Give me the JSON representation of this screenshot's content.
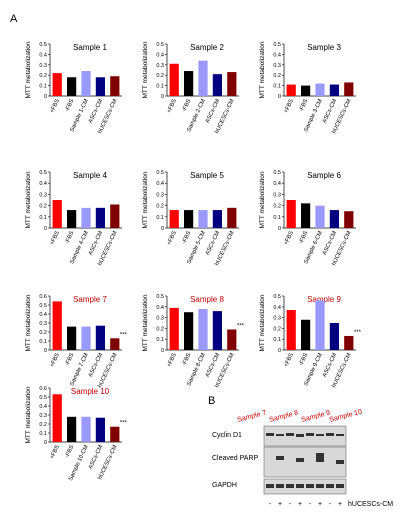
{
  "panel_labels": [
    "A",
    "B"
  ],
  "chart_data": [
    {
      "type": "bar",
      "title": "Sample 1",
      "title_color": "#000000",
      "y_label": "MTT metabolization",
      "categories": [
        "+FBS",
        "-FBS",
        "Sample 1-CM",
        "ASCs-CM",
        "hUCESCs-CM"
      ],
      "values": [
        0.22,
        0.18,
        0.24,
        0.18,
        0.19
      ],
      "colors": [
        "#ff0000",
        "#000000",
        "#9999ff",
        "#000080",
        "#800000"
      ],
      "ylim": [
        0,
        0.5
      ],
      "yticks": [
        0,
        0.1,
        0.2,
        0.3,
        0.4,
        0.5
      ]
    },
    {
      "type": "bar",
      "title": "Sample 2",
      "title_color": "#000000",
      "y_label": "MTT metabolization",
      "categories": [
        "+FBS",
        "-FBS",
        "Sample 2-CM",
        "ASCs-CM",
        "hUCESCs-CM"
      ],
      "values": [
        0.31,
        0.24,
        0.34,
        0.21,
        0.23
      ],
      "colors": [
        "#ff0000",
        "#000000",
        "#9999ff",
        "#000080",
        "#800000"
      ],
      "ylim": [
        0,
        0.5
      ],
      "yticks": [
        0,
        0.1,
        0.2,
        0.3,
        0.4,
        0.5
      ]
    },
    {
      "type": "bar",
      "title": "Sample 3",
      "title_color": "#000000",
      "y_label": "MTT metabolization",
      "categories": [
        "+FBS",
        "-FBS",
        "Sample 3-CM",
        "ASCs-CM",
        "hUCESCs-CM"
      ],
      "values": [
        0.11,
        0.1,
        0.12,
        0.11,
        0.13
      ],
      "colors": [
        "#ff0000",
        "#000000",
        "#9999ff",
        "#000080",
        "#800000"
      ],
      "ylim": [
        0,
        0.5
      ],
      "yticks": [
        0,
        0.1,
        0.2,
        0.3,
        0.4,
        0.5
      ]
    },
    {
      "type": "bar",
      "title": "Sample 4",
      "title_color": "#000000",
      "y_label": "MTT metabolization",
      "categories": [
        "+FBS",
        "-FBS",
        "Sample 4-CM",
        "ASCs-CM",
        "hUCESCs-CM"
      ],
      "values": [
        0.25,
        0.16,
        0.18,
        0.18,
        0.21
      ],
      "colors": [
        "#ff0000",
        "#000000",
        "#9999ff",
        "#000080",
        "#800000"
      ],
      "ylim": [
        0,
        0.5
      ],
      "yticks": [
        0,
        0.1,
        0.2,
        0.3,
        0.4,
        0.5
      ]
    },
    {
      "type": "bar",
      "title": "Sample 5",
      "title_color": "#000000",
      "y_label": "MTT metabolization",
      "categories": [
        "+FBS",
        "-FBS",
        "Sample 5-CM",
        "ASCs-CM",
        "hUCESCs-CM"
      ],
      "values": [
        0.16,
        0.16,
        0.16,
        0.16,
        0.18
      ],
      "colors": [
        "#ff0000",
        "#000000",
        "#9999ff",
        "#000080",
        "#800000"
      ],
      "ylim": [
        0,
        0.5
      ],
      "yticks": [
        0,
        0.1,
        0.2,
        0.3,
        0.4,
        0.5
      ]
    },
    {
      "type": "bar",
      "title": "Sample 6",
      "title_color": "#000000",
      "y_label": "MTT metabolization",
      "categories": [
        "+FBS",
        "-FBS",
        "Sample 6-CM",
        "ASCs-CM",
        "hUCESCs-CM"
      ],
      "values": [
        0.25,
        0.22,
        0.2,
        0.16,
        0.15
      ],
      "colors": [
        "#ff0000",
        "#000000",
        "#9999ff",
        "#000080",
        "#800000"
      ],
      "ylim": [
        0,
        0.5
      ],
      "yticks": [
        0,
        0.1,
        0.2,
        0.3,
        0.4,
        0.5
      ]
    },
    {
      "type": "bar",
      "title": "Sample 7",
      "title_color": "#c00000",
      "y_label": "MTT metabolization",
      "categories": [
        "+FBS",
        "-FBS",
        "Sample 7-CM",
        "ASCs-CM",
        "hUCESCs-CM"
      ],
      "values": [
        0.54,
        0.26,
        0.26,
        0.27,
        0.13
      ],
      "colors": [
        "#ff0000",
        "#000000",
        "#9999ff",
        "#000080",
        "#800000"
      ],
      "ylim": [
        0,
        0.6
      ],
      "yticks": [
        0,
        0.1,
        0.2,
        0.3,
        0.4,
        0.5,
        0.6
      ],
      "annotation": "***"
    },
    {
      "type": "bar",
      "title": "Sample 8",
      "title_color": "#c00000",
      "y_label": "MTT metabolization",
      "categories": [
        "+FBS",
        "-FBS",
        "Sample 8-CM",
        "ASCs-CM",
        "hUCESCs-CM"
      ],
      "values": [
        0.39,
        0.35,
        0.38,
        0.36,
        0.19
      ],
      "colors": [
        "#ff0000",
        "#000000",
        "#9999ff",
        "#000080",
        "#800000"
      ],
      "ylim": [
        0,
        0.5
      ],
      "yticks": [
        0,
        0.1,
        0.2,
        0.3,
        0.4,
        0.5
      ],
      "annotation": "***"
    },
    {
      "type": "bar",
      "title": "Sample 9",
      "title_color": "#c00000",
      "y_label": "MTT metabolization",
      "categories": [
        "+FBS",
        "-FBS",
        "Sample 9-CM",
        "ASCs-CM",
        "hUCESCs-CM"
      ],
      "values": [
        0.37,
        0.28,
        0.46,
        0.25,
        0.13
      ],
      "colors": [
        "#ff0000",
        "#000000",
        "#9999ff",
        "#000080",
        "#800000"
      ],
      "ylim": [
        0,
        0.5
      ],
      "yticks": [
        0,
        0.1,
        0.2,
        0.3,
        0.4,
        0.5
      ],
      "annotation": "***"
    },
    {
      "type": "bar",
      "title": "Sample 10",
      "title_color": "#c00000",
      "y_label": "MTT metabolization",
      "categories": [
        "+FBS",
        "-FBS",
        "Sample 10-CM",
        "ASCs-CM",
        "hUCESCs-CM"
      ],
      "values": [
        0.53,
        0.28,
        0.28,
        0.27,
        0.17
      ],
      "colors": [
        "#ff0000",
        "#000000",
        "#9999ff",
        "#000080",
        "#800000"
      ],
      "ylim": [
        0,
        0.6
      ],
      "yticks": [
        0,
        0.1,
        0.2,
        0.3,
        0.4,
        0.5,
        0.6
      ],
      "annotation": "***"
    }
  ],
  "blot": {
    "samples": [
      "Sample 7",
      "Sample 8",
      "Sample 9",
      "Sample 10"
    ],
    "proteins": [
      "Cyclin D1",
      "Cleaved PARP",
      "GAPDH"
    ],
    "treatment_signs": [
      "-",
      "+",
      "-",
      "+",
      "-",
      "+",
      "-",
      "+"
    ],
    "treatment_label": "hUCESCs-CM"
  }
}
